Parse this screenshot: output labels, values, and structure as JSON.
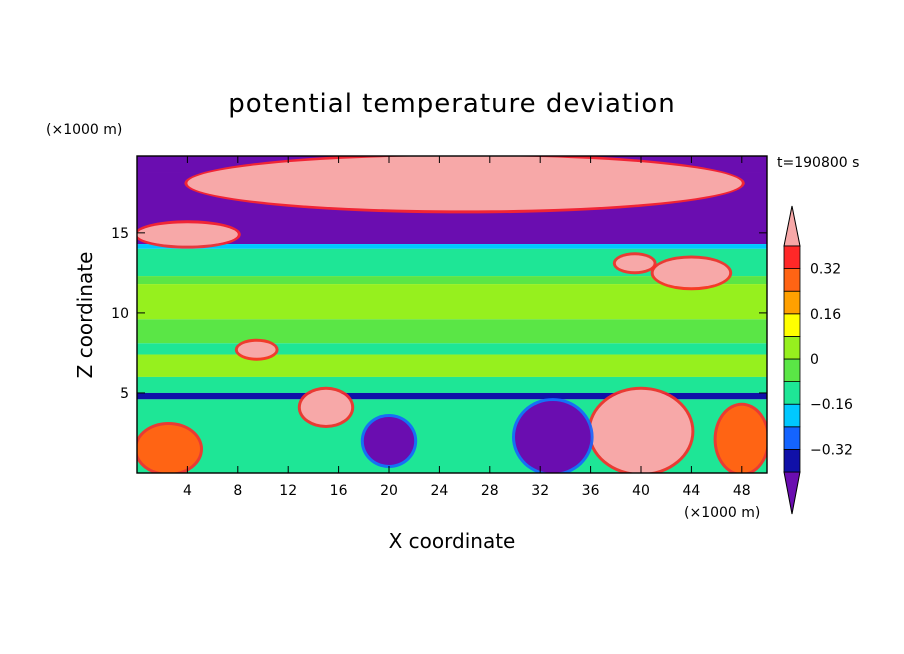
{
  "chart_data": {
    "type": "heatmap",
    "title": "potential temperature deviation",
    "xlabel": "X coordinate",
    "ylabel": "Z coordinate",
    "x_unit_label": "(×1000 m)",
    "y_unit_label": "(×1000 m)",
    "time_label": "t=190800 s",
    "xlim": [
      0,
      50
    ],
    "ylim": [
      0,
      19.8
    ],
    "x_ticks": [
      4,
      8,
      12,
      16,
      20,
      24,
      28,
      32,
      36,
      40,
      44,
      48
    ],
    "y_ticks": [
      5,
      10,
      15
    ],
    "colorbar": {
      "levels": [
        -0.4,
        -0.32,
        -0.24,
        -0.16,
        -0.08,
        0,
        0.08,
        0.16,
        0.24,
        0.32,
        0.4
      ],
      "labeled_levels": [
        -0.32,
        -0.16,
        0,
        0.16,
        0.32
      ],
      "tick_labels": [
        "−0.32",
        "−0.16",
        "0",
        "0.16",
        "0.32"
      ],
      "colors": [
        "#6a0db0",
        "#1010a8",
        "#1464ff",
        "#00c8ff",
        "#1ee696",
        "#5ae646",
        "#96f01e",
        "#ffff00",
        "#ffa000",
        "#ff6414",
        "#ff2828",
        "#f7a8a8"
      ]
    },
    "layers": [
      {
        "z_bottom": 18.8,
        "z_top": 19.8,
        "value": -0.45
      },
      {
        "z_bottom": 14.3,
        "z_top": 18.8,
        "value": -0.45
      },
      {
        "z_bottom": 14.0,
        "z_top": 14.3,
        "value": -0.2
      },
      {
        "z_bottom": 12.3,
        "z_top": 14.0,
        "value": -0.1
      },
      {
        "z_bottom": 11.8,
        "z_top": 12.3,
        "value": -0.05
      },
      {
        "z_bottom": 9.6,
        "z_top": 11.8,
        "value": 0.04
      },
      {
        "z_bottom": 8.1,
        "z_top": 9.6,
        "value": -0.03
      },
      {
        "z_bottom": 7.4,
        "z_top": 8.1,
        "value": -0.12
      },
      {
        "z_bottom": 6.0,
        "z_top": 7.4,
        "value": 0.05
      },
      {
        "z_bottom": 5.0,
        "z_top": 6.0,
        "value": -0.1
      },
      {
        "z_bottom": 4.6,
        "z_top": 5.0,
        "value": -0.35
      },
      {
        "z_bottom": 0.0,
        "z_top": 4.6,
        "value": -0.1
      }
    ],
    "features": [
      {
        "x": [
          4,
          48
        ],
        "z": [
          16.4,
          19.8
        ],
        "value": 0.45
      },
      {
        "x": [
          0,
          8
        ],
        "z": [
          14.2,
          15.6
        ],
        "value": 0.45
      },
      {
        "x": [
          38,
          41
        ],
        "z": [
          12.6,
          13.6
        ],
        "value": 0.45
      },
      {
        "x": [
          41,
          47
        ],
        "z": [
          11.6,
          13.4
        ],
        "value": 0.45
      },
      {
        "x": [
          8,
          11
        ],
        "z": [
          7.2,
          8.2
        ],
        "value": 0.45
      },
      {
        "x": [
          13,
          17
        ],
        "z": [
          3.0,
          5.2
        ],
        "value": 0.45
      },
      {
        "x": [
          36,
          44
        ],
        "z": [
          0,
          5.2
        ],
        "value": 0.45
      },
      {
        "x": [
          0,
          5
        ],
        "z": [
          0,
          3.0
        ],
        "value": 0.3
      },
      {
        "x": [
          46,
          50
        ],
        "z": [
          0,
          4.2
        ],
        "value": 0.3
      },
      {
        "x": [
          18,
          22
        ],
        "z": [
          0.5,
          3.5
        ],
        "value": -0.45
      },
      {
        "x": [
          30,
          36
        ],
        "z": [
          0,
          4.5
        ],
        "value": -0.45
      }
    ]
  }
}
